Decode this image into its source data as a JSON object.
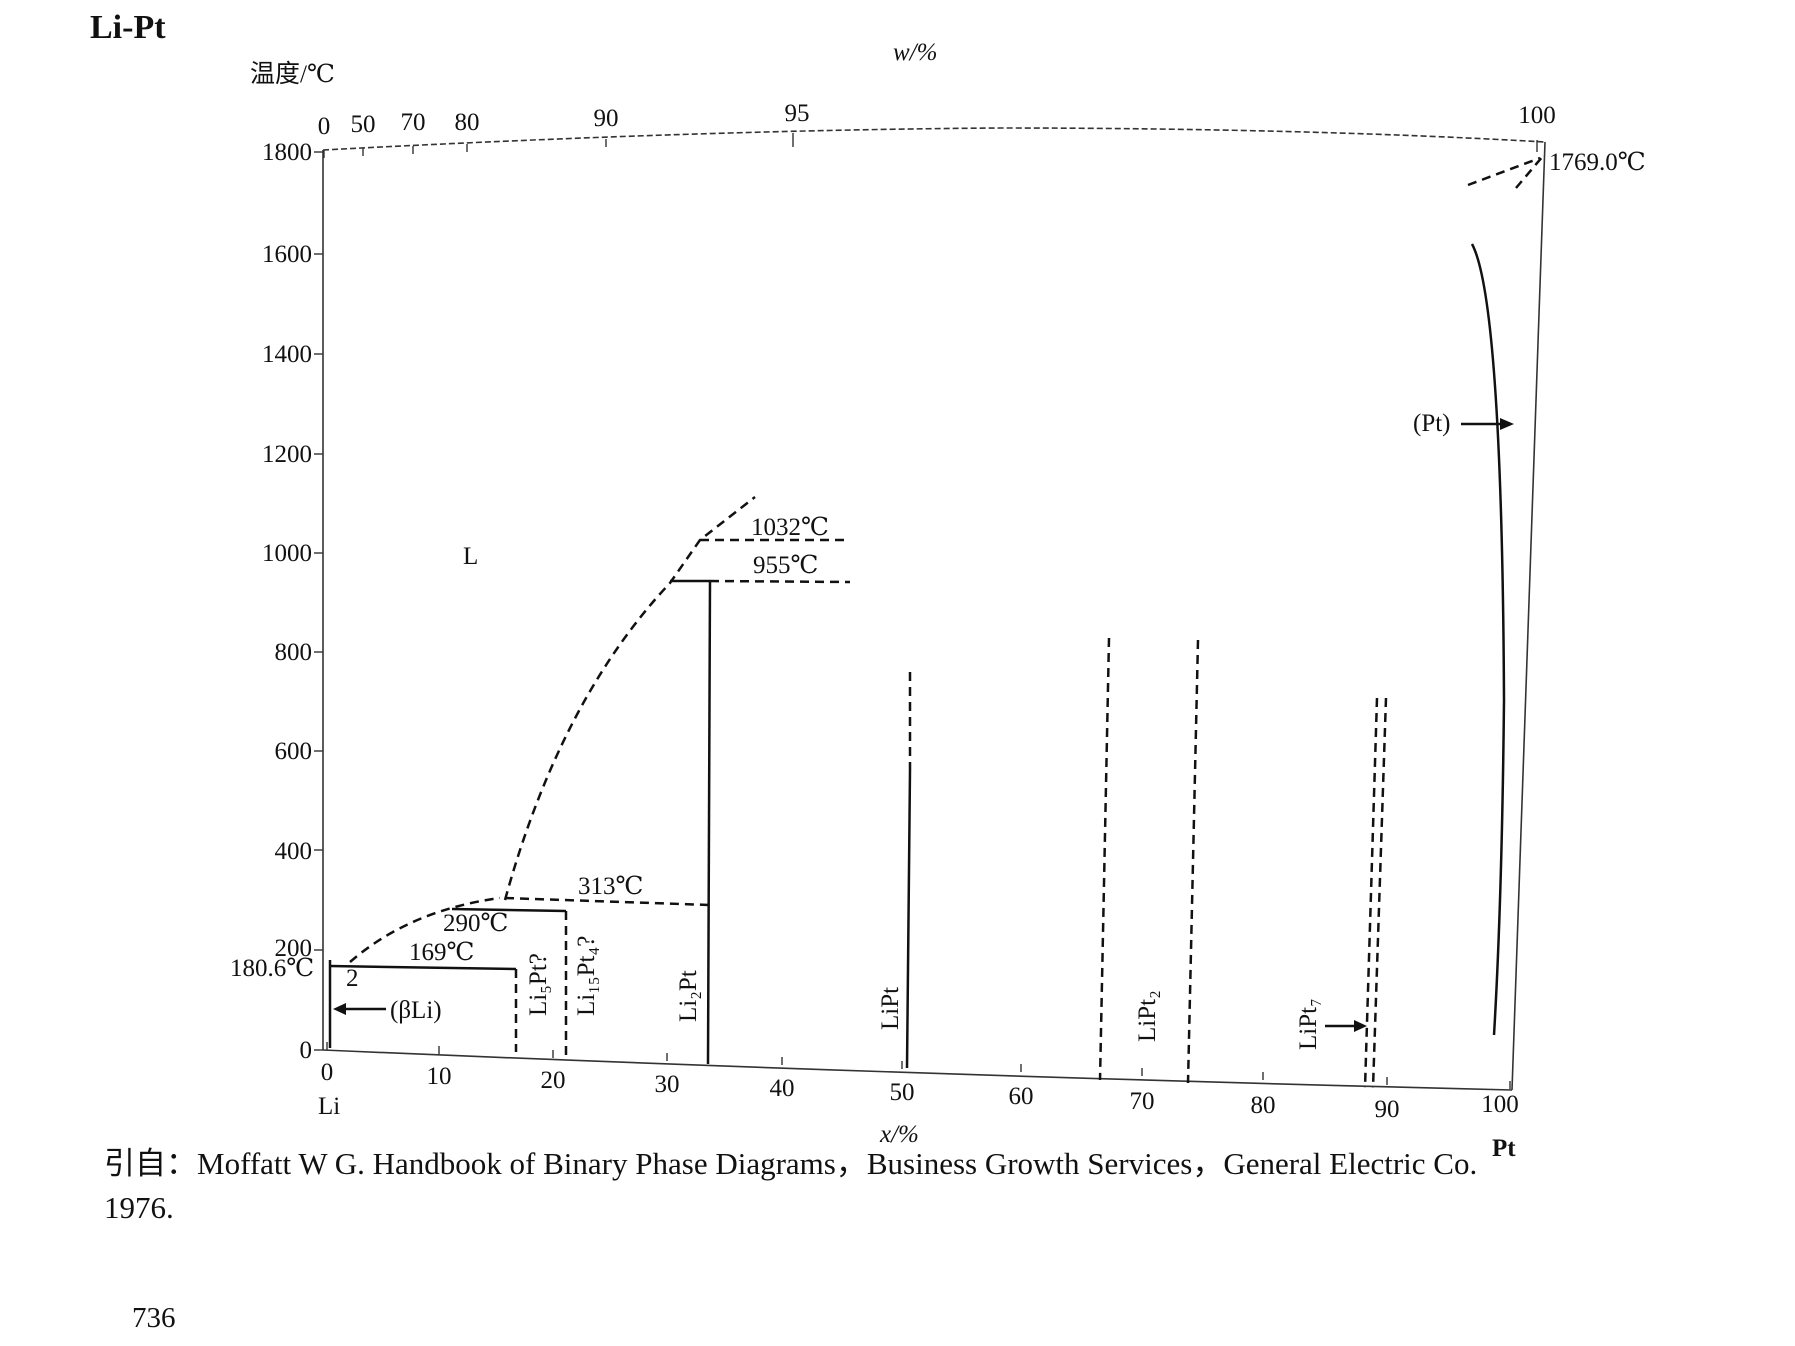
{
  "title": "Li-Pt",
  "y_axis_label": "温度/℃",
  "top_axis_label": "w/%",
  "bottom_axis_label": "x/%",
  "left_end_label": "Li",
  "right_end_label": "Pt",
  "y_ticks": [
    "0",
    "200",
    "400",
    "600",
    "800",
    "1000",
    "1200",
    "1400",
    "1600",
    "1800"
  ],
  "bottom_ticks": [
    "0",
    "10",
    "20",
    "30",
    "40",
    "50",
    "60",
    "70",
    "80",
    "90",
    "100"
  ],
  "top_ticks": [
    "0",
    "50",
    "70",
    "80",
    "90",
    "95",
    "100"
  ],
  "annotations": {
    "liquid": "L",
    "t1032": "1032℃",
    "t955": "955℃",
    "t313": "313℃",
    "t290": "290℃",
    "t169": "169℃",
    "t180": "180.6℃",
    "t1769": "1769.0℃",
    "two": "2",
    "beta_li": "(βLi)",
    "pt_phase": "(Pt)"
  },
  "phases": {
    "li5pt": "Li₅Pt?",
    "li15pt4": "Li₁₅Pt₄?",
    "li2pt": "Li₂Pt",
    "lipt": "LiPt",
    "lipt2": "LiPt₂",
    "lipt7": "LiPt₇"
  },
  "citation": {
    "line1": "引自：Moffatt W G. Handbook of Binary Phase Diagrams，Business Growth Services，General Electric Co.",
    "line2": "1976."
  },
  "page_number": "736"
}
